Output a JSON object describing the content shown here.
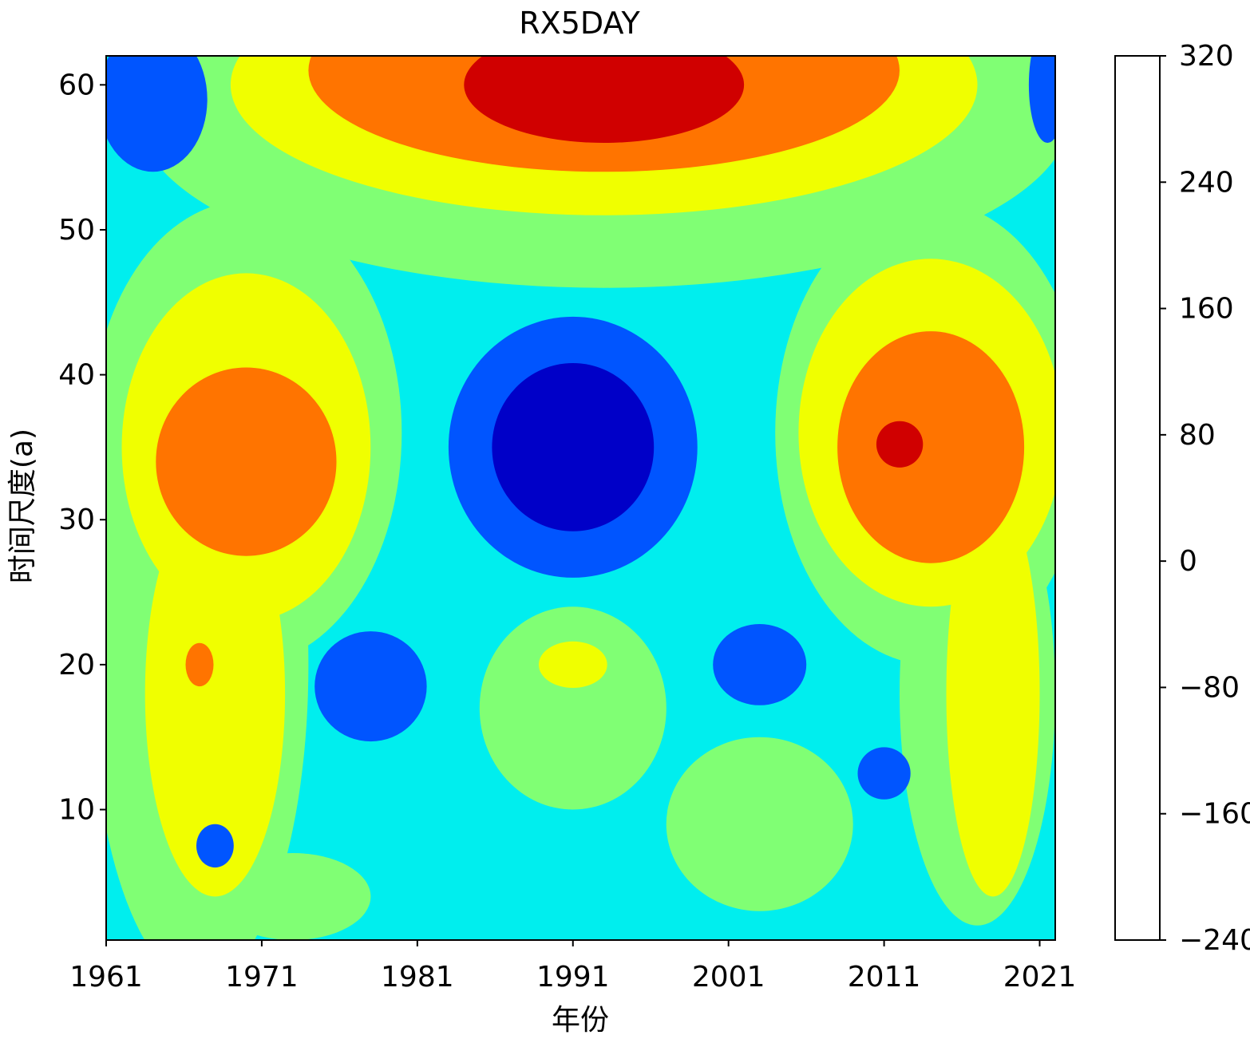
{
  "chart_data": {
    "type": "heatmap",
    "subtype": "filled-contour",
    "title": "RX5DAY",
    "xlabel": "年份",
    "ylabel": "时间尺度(a)",
    "xlim": [
      1961,
      2022
    ],
    "ylim": [
      1,
      62
    ],
    "x_ticks": [
      1961,
      1971,
      1981,
      1991,
      2001,
      2011,
      2021
    ],
    "y_ticks": [
      10,
      20,
      30,
      40,
      50,
      60
    ],
    "colorbar": {
      "levels": [
        -240,
        -160,
        -80,
        0,
        80,
        160,
        240,
        320
      ],
      "tick_labels": [
        "320",
        "240",
        "160",
        "80",
        "0",
        "−80",
        "−160",
        "−240"
      ],
      "colors": [
        "#0000c8",
        "#0055ff",
        "#00eeee",
        "#80ff74",
        "#f0ff00",
        "#ff7400",
        "#d00000"
      ]
    },
    "features": [
      {
        "name": "upper-red-core",
        "x": 1993,
        "y": 60,
        "xr": 9,
        "yr": 4,
        "value": 270
      },
      {
        "name": "upper-orange-arc",
        "x": 1993,
        "y": 61,
        "xr": 19,
        "yr": 7,
        "value": 200
      },
      {
        "name": "left-orange-center",
        "x": 1970,
        "y": 34,
        "xr": 5.8,
        "yr": 6.5,
        "value": 200
      },
      {
        "name": "left-orange-small",
        "x": 1967,
        "y": 20,
        "xr": 0.9,
        "yr": 1.5,
        "value": 170
      },
      {
        "name": "central-deep-blue",
        "x": 1991,
        "y": 35,
        "xr": 5.2,
        "yr": 5.8,
        "value": -200
      },
      {
        "name": "central-blue-ring",
        "x": 1991,
        "y": 35,
        "xr": 8,
        "yr": 9,
        "value": -120
      },
      {
        "name": "right-orange-center",
        "x": 2014,
        "y": 35,
        "xr": 6,
        "yr": 8,
        "value": 200
      },
      {
        "name": "right-red-spot",
        "x": 2012,
        "y": 35.2,
        "xr": 1.5,
        "yr": 1.6,
        "value": 260
      },
      {
        "name": "blue-lobe-1978",
        "x": 1978,
        "y": 18.5,
        "xr": 3.6,
        "yr": 3.8,
        "value": -120
      },
      {
        "name": "blue-lobe-2003",
        "x": 2003,
        "y": 20,
        "xr": 3,
        "yr": 2.8,
        "value": -120
      },
      {
        "name": "blue-lobe-2011",
        "x": 2011,
        "y": 12.5,
        "xr": 1.7,
        "yr": 1.8,
        "value": -120
      },
      {
        "name": "blue-lobe-1968",
        "x": 1968,
        "y": 7.5,
        "xr": 1.2,
        "yr": 1.5,
        "value": -120
      },
      {
        "name": "yellow-spot-1991",
        "x": 1991,
        "y": 20,
        "xr": 2.2,
        "yr": 1.6,
        "value": 120
      },
      {
        "name": "top-left-blue",
        "x": 1964,
        "y": 59,
        "xr": 3.5,
        "yr": 5,
        "value": -120
      },
      {
        "name": "top-right-blue",
        "x": 2021.5,
        "y": 60,
        "xr": 1.2,
        "yr": 4,
        "value": -120
      }
    ]
  }
}
